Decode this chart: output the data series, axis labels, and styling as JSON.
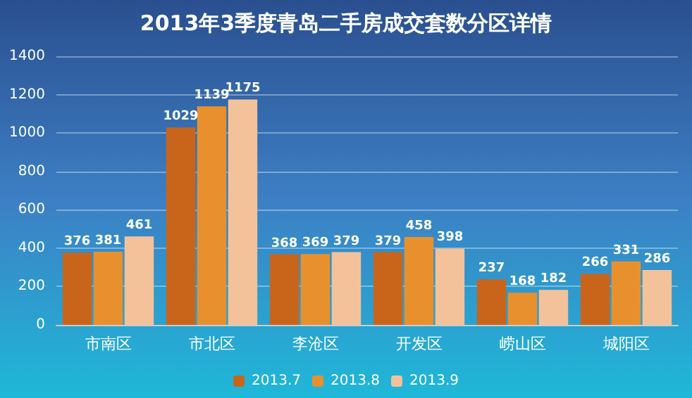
{
  "chart_data": {
    "type": "bar",
    "title": "2013年3季度青岛二手房成交套数分区详情",
    "categories": [
      "市南区",
      "市北区",
      "李沧区",
      "开发区",
      "崂山区",
      "城阳区"
    ],
    "series": [
      {
        "name": "2013.7",
        "color": "#c8651b",
        "values": [
          376,
          1029,
          368,
          379,
          237,
          266
        ]
      },
      {
        "name": "2013.8",
        "color": "#e8902e",
        "values": [
          381,
          1139,
          369,
          458,
          168,
          331
        ]
      },
      {
        "name": "2013.9",
        "color": "#f3c29a",
        "values": [
          461,
          1175,
          379,
          398,
          182,
          286
        ]
      }
    ],
    "ylim": [
      0,
      1400
    ],
    "yticks": [
      0,
      200,
      400,
      600,
      800,
      1000,
      1200,
      1400
    ],
    "grid": "y",
    "legend": "bottom",
    "data_labels": true
  }
}
